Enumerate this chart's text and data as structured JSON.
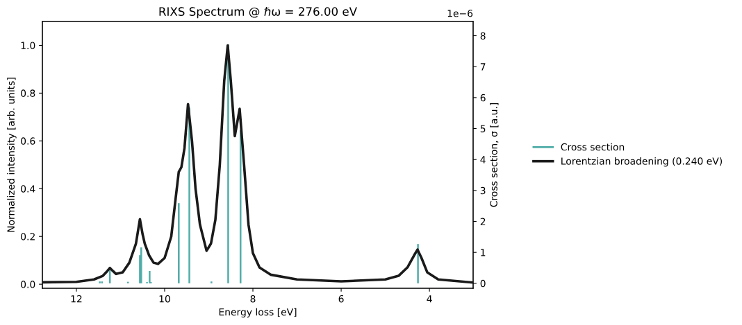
{
  "chart_data": {
    "type": "line",
    "title": "RIXS Spectrum @ ℏω = 276.00 eV",
    "xlabel": "Energy loss [eV]",
    "ylabel": "Normalized intensity [arb. units]",
    "y2label": "Cross section, σ [a.u.]",
    "annotations": [
      "1e−6"
    ],
    "xlim": [
      12.77,
      3.01
    ],
    "xticks": [
      12,
      10,
      8,
      6,
      4
    ],
    "ylim": [
      -0.017,
      1.1
    ],
    "yticks": [
      {
        "value": 0,
        "label": "0.0"
      },
      {
        "value": 0.2,
        "label": "0.2"
      },
      {
        "value": 0.4,
        "label": "0.4"
      },
      {
        "value": 0.6,
        "label": "0.6"
      },
      {
        "value": 0.8,
        "label": "0.8"
      },
      {
        "value": 1,
        "label": "1.0"
      }
    ],
    "y2lim": [
      -0.16,
      8.46
    ],
    "y2ticks": [
      0,
      1,
      2,
      3,
      4,
      5,
      6,
      7,
      8
    ],
    "grid": false,
    "legend": "right",
    "series": [
      {
        "name": "Cross section",
        "type": "bar",
        "axis": "y2",
        "color": "#4aaaa5",
        "x": [
          11.47,
          11.42,
          11.24,
          10.83,
          10.56,
          10.53,
          10.4,
          10.34,
          10.31,
          9.68,
          9.44,
          8.94,
          8.56,
          8.28,
          4.26
        ],
        "values": [
          0.06,
          0.06,
          0.42,
          0.05,
          0.91,
          1.16,
          0.04,
          0.4,
          0.04,
          2.59,
          5.68,
          0.06,
          7.72,
          4.95,
          1.27
        ]
      },
      {
        "name": "Lorentzian broadening (0.240 eV)",
        "color": "#1a1a1a",
        "x": [
          12.77,
          12.0,
          11.6,
          11.4,
          11.3,
          11.24,
          11.17,
          11.1,
          10.95,
          10.8,
          10.65,
          10.56,
          10.5,
          10.45,
          10.35,
          10.25,
          10.15,
          10.0,
          9.85,
          9.75,
          9.68,
          9.62,
          9.55,
          9.47,
          9.38,
          9.3,
          9.2,
          9.05,
          8.95,
          8.85,
          8.75,
          8.65,
          8.57,
          8.5,
          8.41,
          8.3,
          8.2,
          8.1,
          8.0,
          7.85,
          7.6,
          7.0,
          6.0,
          5.0,
          4.7,
          4.5,
          4.35,
          4.27,
          4.18,
          4.05,
          3.8,
          3.01
        ],
        "values": [
          0.008,
          0.01,
          0.02,
          0.035,
          0.055,
          0.068,
          0.055,
          0.043,
          0.05,
          0.09,
          0.17,
          0.272,
          0.21,
          0.17,
          0.12,
          0.09,
          0.085,
          0.11,
          0.2,
          0.36,
          0.47,
          0.49,
          0.57,
          0.754,
          0.6,
          0.4,
          0.25,
          0.14,
          0.17,
          0.27,
          0.5,
          0.85,
          1.0,
          0.85,
          0.62,
          0.734,
          0.5,
          0.25,
          0.13,
          0.07,
          0.04,
          0.02,
          0.012,
          0.02,
          0.035,
          0.07,
          0.12,
          0.145,
          0.11,
          0.05,
          0.02,
          0.007
        ]
      }
    ]
  }
}
